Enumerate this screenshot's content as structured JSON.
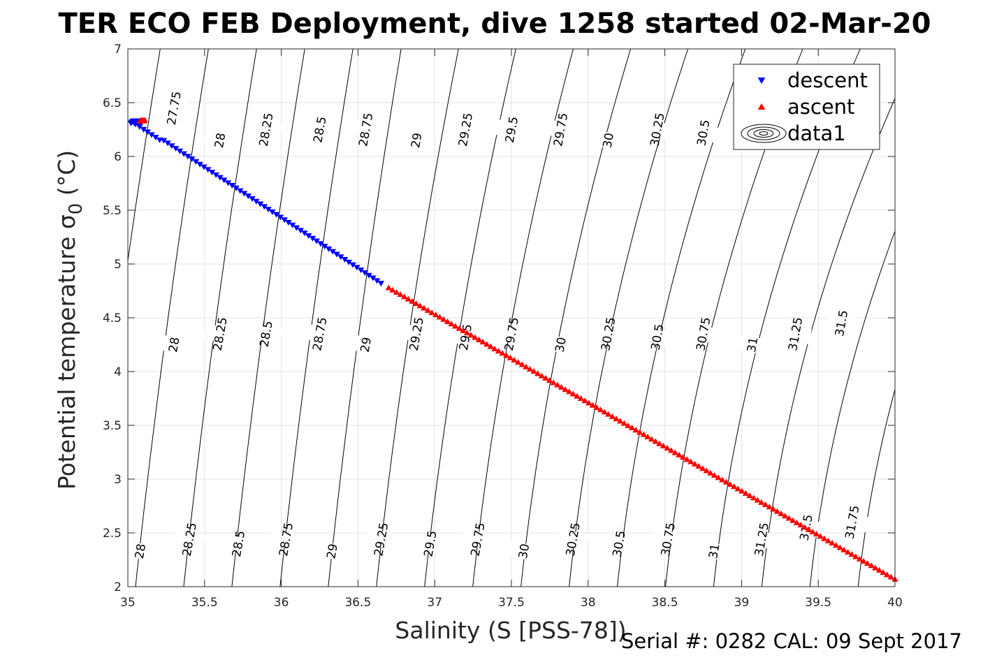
{
  "chart_data": {
    "type": "scatter",
    "title": "TER ECO FEB Deployment, dive 1258 started 02-Mar-20",
    "xlabel": "Salinity (S [PSS-78])",
    "ylabel": "Potential temperature σ",
    "ylabel_sub": "0",
    "ylabel_unit": " (°C)",
    "xlim": [
      35,
      40
    ],
    "ylim": [
      2,
      7
    ],
    "xticks": [
      "35",
      "35.5",
      "36",
      "36.5",
      "37",
      "37.5",
      "38",
      "38.5",
      "39",
      "39.5",
      "40"
    ],
    "yticks": [
      "2",
      "2.5",
      "3",
      "3.5",
      "4",
      "4.5",
      "5",
      "5.5",
      "6",
      "6.5",
      "7"
    ],
    "grid": true,
    "legend_position": "top-right",
    "series": [
      {
        "name": "descent",
        "color": "#0000ff",
        "marker": "triangle-down",
        "x_start": 35.05,
        "y_start": 6.32,
        "x_end": 36.65,
        "y_end": 4.82
      },
      {
        "name": "ascent",
        "color": "#ff0000",
        "marker": "triangle-up",
        "x_start": 36.7,
        "y_start": 4.78,
        "x_end": 40.0,
        "y_end": 2.07
      }
    ],
    "contour_legend": "data1",
    "contour_lines": [
      27.75,
      28,
      28.25,
      28.5,
      28.75,
      29,
      29.25,
      29.5,
      29.75,
      30,
      30.25,
      30.5,
      30.75,
      31,
      31.25,
      31.5,
      31.75
    ],
    "contour_labels": [
      {
        "text": "27.75",
        "x": 35.3,
        "y": 6.45
      },
      {
        "text": "28",
        "x": 35.6,
        "y": 6.15
      },
      {
        "text": "28.25",
        "x": 35.9,
        "y": 6.25
      },
      {
        "text": "28.5",
        "x": 36.25,
        "y": 6.25
      },
      {
        "text": "28.75",
        "x": 36.55,
        "y": 6.25
      },
      {
        "text": "29",
        "x": 36.88,
        "y": 6.15
      },
      {
        "text": "29.25",
        "x": 37.2,
        "y": 6.25
      },
      {
        "text": "29.5",
        "x": 37.5,
        "y": 6.25
      },
      {
        "text": "29.75",
        "x": 37.82,
        "y": 6.25
      },
      {
        "text": "30",
        "x": 38.13,
        "y": 6.15
      },
      {
        "text": "30.25",
        "x": 38.45,
        "y": 6.25
      },
      {
        "text": "30.5",
        "x": 38.75,
        "y": 6.22
      },
      {
        "text": "28",
        "x": 35.3,
        "y": 4.25
      },
      {
        "text": "28.25",
        "x": 35.6,
        "y": 4.35
      },
      {
        "text": "28.5",
        "x": 35.9,
        "y": 4.35
      },
      {
        "text": "28.75",
        "x": 36.25,
        "y": 4.35
      },
      {
        "text": "29",
        "x": 36.55,
        "y": 4.25
      },
      {
        "text": "29.25",
        "x": 36.88,
        "y": 4.35
      },
      {
        "text": "29.5",
        "x": 37.2,
        "y": 4.32
      },
      {
        "text": "29.75",
        "x": 37.5,
        "y": 4.35
      },
      {
        "text": "30",
        "x": 37.82,
        "y": 4.25
      },
      {
        "text": "30.25",
        "x": 38.13,
        "y": 4.35
      },
      {
        "text": "30.5",
        "x": 38.45,
        "y": 4.32
      },
      {
        "text": "30.75",
        "x": 38.75,
        "y": 4.35
      },
      {
        "text": "31",
        "x": 39.07,
        "y": 4.25
      },
      {
        "text": "31.25",
        "x": 39.35,
        "y": 4.35
      },
      {
        "text": "31.5",
        "x": 39.65,
        "y": 4.45
      },
      {
        "text": "28",
        "x": 35.08,
        "y": 2.33
      },
      {
        "text": "28.25",
        "x": 35.4,
        "y": 2.44
      },
      {
        "text": "28.5",
        "x": 35.72,
        "y": 2.4
      },
      {
        "text": "28.75",
        "x": 36.03,
        "y": 2.44
      },
      {
        "text": "29",
        "x": 36.33,
        "y": 2.33
      },
      {
        "text": "29.25",
        "x": 36.65,
        "y": 2.44
      },
      {
        "text": "29.5",
        "x": 36.97,
        "y": 2.4
      },
      {
        "text": "29.75",
        "x": 37.28,
        "y": 2.44
      },
      {
        "text": "30",
        "x": 37.58,
        "y": 2.33
      },
      {
        "text": "30.25",
        "x": 37.9,
        "y": 2.44
      },
      {
        "text": "30.5",
        "x": 38.2,
        "y": 2.4
      },
      {
        "text": "30.75",
        "x": 38.52,
        "y": 2.44
      },
      {
        "text": "31",
        "x": 38.82,
        "y": 2.33
      },
      {
        "text": "31.25",
        "x": 39.13,
        "y": 2.44
      },
      {
        "text": "31.5",
        "x": 39.42,
        "y": 2.55
      },
      {
        "text": "31.75",
        "x": 39.72,
        "y": 2.6
      }
    ]
  },
  "footer": "Serial #: 0282  CAL: 09 Sept 2017",
  "colors": {
    "descent": "#0000ff",
    "ascent": "#ff0000",
    "grid": "#e3e3e3",
    "axis": "#262626"
  }
}
